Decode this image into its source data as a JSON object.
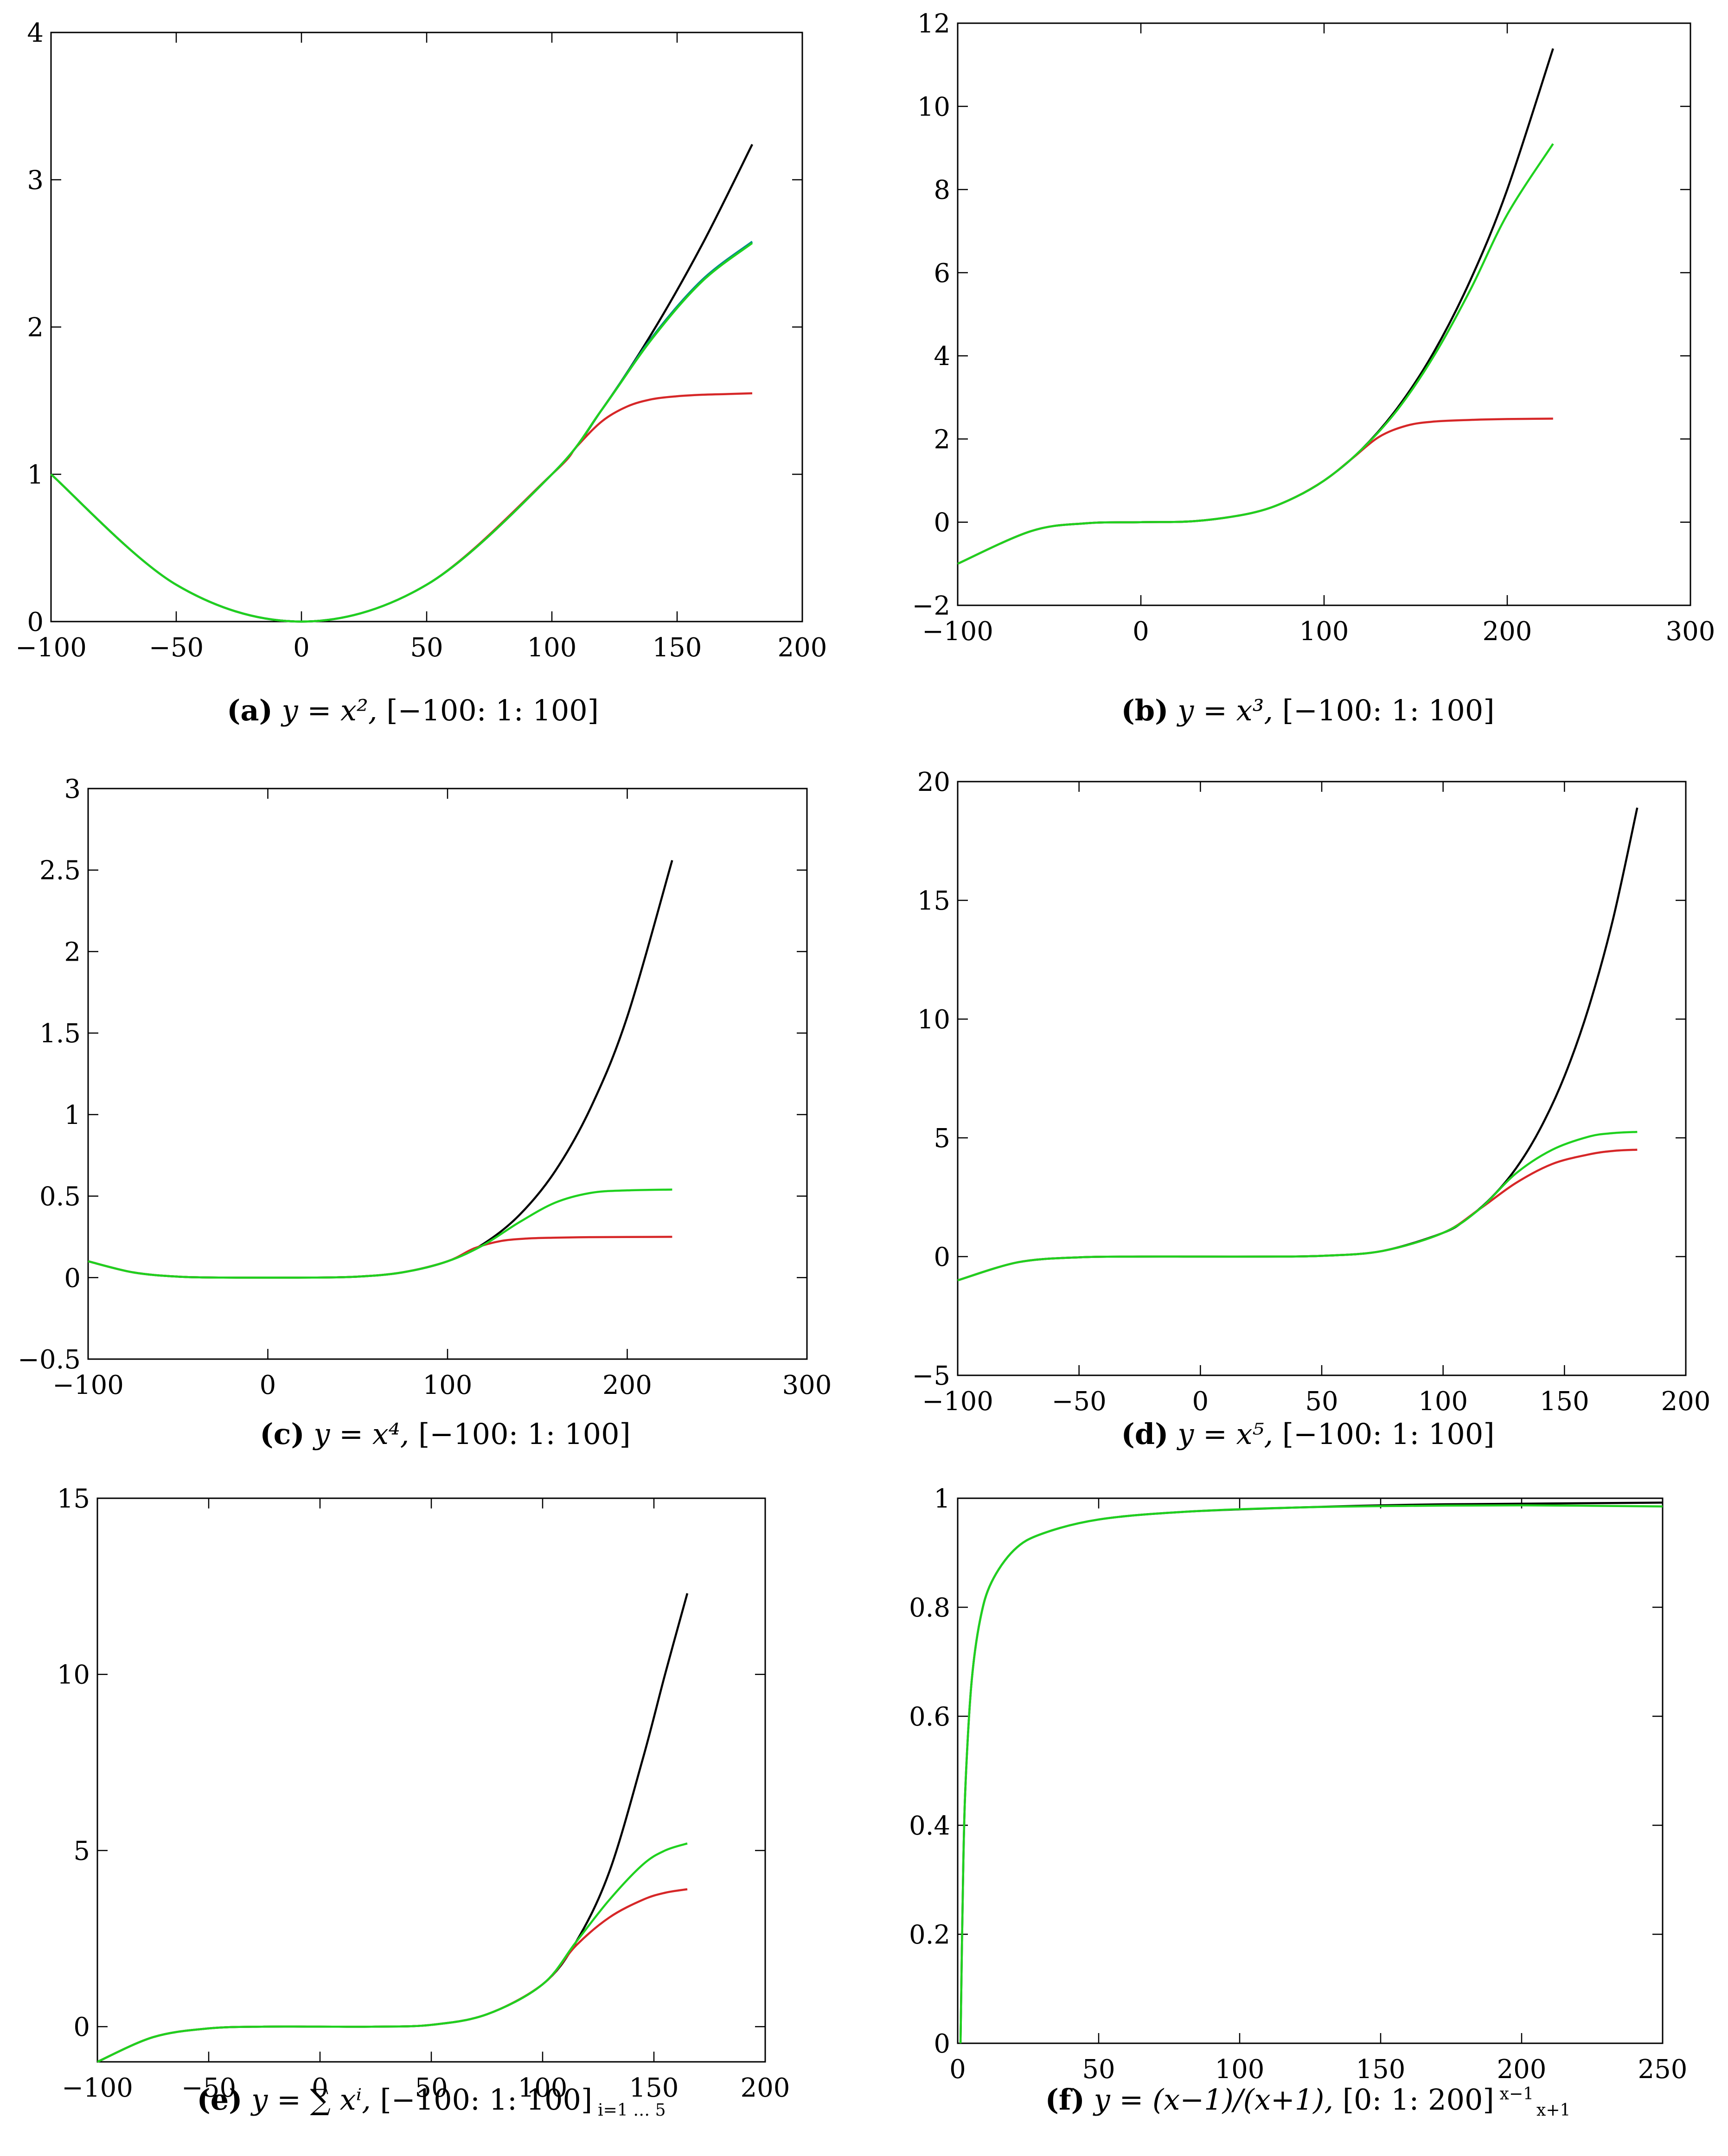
{
  "chart_data": [
    {
      "type": "line",
      "panel_label": "(a)",
      "caption_eq": "y = x²,",
      "caption_range": "[−100: 1: 100]",
      "xlim": [
        -100,
        200
      ],
      "ylim": [
        0,
        4
      ],
      "x_ticks": [
        -100,
        -50,
        0,
        50,
        100,
        150,
        200
      ],
      "y_ticks": [
        0,
        1,
        2,
        3,
        4
      ],
      "x_tick_labels": [
        "−100",
        "−50",
        "0",
        "50",
        "100",
        "150",
        "200"
      ],
      "y_tick_labels": [
        "0",
        "1",
        "2",
        "3",
        "4"
      ],
      "series": [
        {
          "name": "black",
          "color": "#000000",
          "x": [
            -100,
            -50,
            0,
            50,
            100,
            120,
            140,
            160,
            180
          ],
          "y": [
            1.0,
            0.25,
            0.0,
            0.25,
            1.0,
            1.44,
            1.96,
            2.56,
            3.24
          ]
        },
        {
          "name": "red",
          "color": "#d62728",
          "x": [
            -100,
            -50,
            0,
            50,
            100,
            110,
            120,
            130,
            140,
            150,
            160,
            170,
            180
          ],
          "y": [
            1.0,
            0.25,
            0.0,
            0.25,
            1.0,
            1.19,
            1.36,
            1.46,
            1.51,
            1.53,
            1.54,
            1.545,
            1.55
          ]
        },
        {
          "name": "teal",
          "color": "#008b8b",
          "x": [
            -100,
            -50,
            0,
            50,
            100,
            120,
            140,
            160,
            180
          ],
          "y": [
            1.0,
            0.25,
            0.0,
            0.25,
            1.0,
            1.44,
            1.93,
            2.32,
            2.58
          ]
        },
        {
          "name": "green",
          "color": "#1fd11f",
          "x": [
            -100,
            -50,
            0,
            50,
            100,
            120,
            140,
            160,
            180
          ],
          "y": [
            1.0,
            0.25,
            0.0,
            0.25,
            1.0,
            1.44,
            1.92,
            2.31,
            2.57
          ]
        }
      ]
    },
    {
      "type": "line",
      "panel_label": "(b)",
      "caption_eq": "y = x³,",
      "caption_range": "[−100: 1: 100]",
      "xlim": [
        -100,
        300
      ],
      "ylim": [
        -2,
        12
      ],
      "x_ticks": [
        -100,
        0,
        100,
        200,
        300
      ],
      "y_ticks": [
        -2,
        0,
        2,
        4,
        6,
        8,
        10,
        12
      ],
      "x_tick_labels": [
        "−100",
        "0",
        "100",
        "200",
        "300"
      ],
      "y_tick_labels": [
        "−2",
        "0",
        "2",
        "4",
        "6",
        "8",
        "10",
        "12"
      ],
      "series": [
        {
          "name": "black",
          "color": "#000000",
          "x": [
            -100,
            -60,
            -30,
            0,
            30,
            60,
            80,
            100,
            120,
            140,
            160,
            180,
            200,
            225
          ],
          "y": [
            -1.0,
            -0.216,
            -0.027,
            0.0,
            0.027,
            0.216,
            0.512,
            1.0,
            1.728,
            2.744,
            4.096,
            5.832,
            8.0,
            11.39
          ]
        },
        {
          "name": "red",
          "color": "#d62728",
          "x": [
            -100,
            -60,
            -30,
            0,
            30,
            60,
            80,
            100,
            115,
            130,
            145,
            160,
            180,
            200,
            225
          ],
          "y": [
            -1.0,
            -0.216,
            -0.027,
            0.0,
            0.027,
            0.216,
            0.512,
            1.0,
            1.52,
            2.05,
            2.32,
            2.42,
            2.46,
            2.48,
            2.49
          ]
        },
        {
          "name": "green",
          "color": "#1fd11f",
          "x": [
            -100,
            -60,
            -30,
            0,
            30,
            60,
            80,
            100,
            120,
            140,
            160,
            180,
            200,
            225
          ],
          "y": [
            -1.0,
            -0.216,
            -0.027,
            0.0,
            0.027,
            0.216,
            0.512,
            1.0,
            1.728,
            2.7,
            4.0,
            5.6,
            7.4,
            9.1
          ]
        }
      ]
    },
    {
      "type": "line",
      "panel_label": "(c)",
      "caption_eq": "y = x⁴,",
      "caption_range": "[−100: 1: 100]",
      "xlim": [
        -100,
        300
      ],
      "ylim": [
        -0.5,
        3
      ],
      "x_ticks": [
        -100,
        0,
        100,
        200,
        300
      ],
      "y_ticks": [
        -0.5,
        0,
        0.5,
        1,
        1.5,
        2,
        2.5,
        3
      ],
      "x_tick_labels": [
        "−100",
        "0",
        "100",
        "200",
        "300"
      ],
      "y_tick_labels": [
        "−0.5",
        "0",
        "0.5",
        "1",
        "1.5",
        "2",
        "2.5",
        "3"
      ],
      "series": [
        {
          "name": "black",
          "color": "#000000",
          "x": [
            -100,
            -75,
            -50,
            -25,
            0,
            25,
            50,
            75,
            100,
            120,
            140,
            160,
            180,
            200,
            225
          ],
          "y": [
            0.1,
            0.032,
            0.006,
            0.0,
            0.0,
            0.0,
            0.006,
            0.032,
            0.1,
            0.207,
            0.384,
            0.655,
            1.05,
            1.6,
            2.56
          ]
        },
        {
          "name": "red",
          "color": "#d62728",
          "x": [
            -100,
            -75,
            -50,
            -25,
            0,
            25,
            50,
            75,
            100,
            115,
            130,
            145,
            160,
            180,
            200,
            225
          ],
          "y": [
            0.1,
            0.032,
            0.006,
            0.0,
            0.0,
            0.0,
            0.006,
            0.032,
            0.1,
            0.18,
            0.225,
            0.24,
            0.245,
            0.248,
            0.249,
            0.25
          ]
        },
        {
          "name": "green",
          "color": "#1fd11f",
          "x": [
            -100,
            -75,
            -50,
            -25,
            0,
            25,
            50,
            75,
            100,
            120,
            140,
            160,
            180,
            200,
            225
          ],
          "y": [
            0.1,
            0.032,
            0.006,
            0.0,
            0.0,
            0.0,
            0.006,
            0.032,
            0.1,
            0.2,
            0.34,
            0.46,
            0.52,
            0.535,
            0.54
          ]
        }
      ]
    },
    {
      "type": "line",
      "panel_label": "(d)",
      "caption_eq": "y = x⁵,",
      "caption_range": "[−100: 1: 100]",
      "xlim": [
        -100,
        200
      ],
      "ylim": [
        -5,
        20
      ],
      "x_ticks": [
        -100,
        -50,
        0,
        50,
        100,
        150,
        200
      ],
      "y_ticks": [
        -5,
        0,
        5,
        10,
        15,
        20
      ],
      "x_tick_labels": [
        "−100",
        "−50",
        "0",
        "50",
        "100",
        "150",
        "200"
      ],
      "y_tick_labels": [
        "−5",
        "0",
        "5",
        "10",
        "15",
        "20"
      ],
      "series": [
        {
          "name": "black",
          "color": "#000000",
          "x": [
            -100,
            -75,
            -50,
            -25,
            0,
            25,
            50,
            75,
            100,
            110,
            120,
            130,
            140,
            150,
            160,
            170,
            180
          ],
          "y": [
            -1.0,
            -0.237,
            -0.031,
            0.0,
            0.0,
            0.0,
            0.031,
            0.237,
            1.0,
            1.61,
            2.49,
            3.71,
            5.38,
            7.59,
            10.49,
            14.2,
            18.9
          ]
        },
        {
          "name": "red",
          "color": "#d62728",
          "x": [
            -100,
            -75,
            -50,
            -25,
            0,
            25,
            50,
            75,
            100,
            115,
            130,
            145,
            160,
            170,
            180
          ],
          "y": [
            -1.0,
            -0.237,
            -0.031,
            0.0,
            0.0,
            0.0,
            0.031,
            0.237,
            1.0,
            2.0,
            3.1,
            3.9,
            4.3,
            4.45,
            4.5
          ]
        },
        {
          "name": "green",
          "color": "#1fd11f",
          "x": [
            -100,
            -75,
            -50,
            -25,
            0,
            25,
            50,
            75,
            100,
            115,
            130,
            145,
            160,
            170,
            180
          ],
          "y": [
            -1.0,
            -0.237,
            -0.031,
            0.0,
            0.0,
            0.0,
            0.031,
            0.237,
            1.0,
            2.0,
            3.5,
            4.5,
            5.05,
            5.2,
            5.25
          ]
        }
      ]
    },
    {
      "type": "line",
      "panel_label": "(e)",
      "caption_eq": "y = ∑ xⁱ,",
      "caption_sum_limits": "i=1 … 5",
      "caption_range": "[−100: 1: 100]",
      "xlim": [
        -100,
        200
      ],
      "ylim": [
        -1,
        15
      ],
      "x_ticks": [
        -100,
        -50,
        0,
        50,
        100,
        150,
        200
      ],
      "y_ticks": [
        0,
        5,
        10,
        15
      ],
      "x_tick_labels": [
        "−100",
        "−50",
        "0",
        "50",
        "100",
        "150",
        "200"
      ],
      "y_tick_labels": [
        "0",
        "5",
        "10",
        "15"
      ],
      "series": [
        {
          "name": "black",
          "color": "#000000",
          "x": [
            -100,
            -75,
            -50,
            -25,
            0,
            25,
            50,
            75,
            100,
            115,
            130,
            145,
            155,
            165
          ],
          "y": [
            -1.0,
            -0.3,
            -0.05,
            0.0,
            0.0,
            0.0,
            0.05,
            0.35,
            1.2,
            2.4,
            4.4,
            7.6,
            10.0,
            12.3
          ]
        },
        {
          "name": "red",
          "color": "#d62728",
          "x": [
            -100,
            -75,
            -50,
            -25,
            0,
            25,
            50,
            75,
            100,
            115,
            130,
            145,
            155,
            165
          ],
          "y": [
            -1.0,
            -0.3,
            -0.05,
            0.0,
            0.0,
            0.0,
            0.05,
            0.35,
            1.2,
            2.3,
            3.1,
            3.6,
            3.8,
            3.9
          ]
        },
        {
          "name": "green",
          "color": "#1fd11f",
          "x": [
            -100,
            -75,
            -50,
            -25,
            0,
            25,
            50,
            75,
            100,
            115,
            130,
            145,
            155,
            165
          ],
          "y": [
            -1.0,
            -0.3,
            -0.05,
            0.0,
            0.0,
            0.0,
            0.05,
            0.35,
            1.2,
            2.4,
            3.6,
            4.6,
            5.0,
            5.2
          ]
        }
      ]
    },
    {
      "type": "line",
      "panel_label": "(f)",
      "caption_eq": "y = (x−1)/(x+1),",
      "caption_frac_num": "x−1",
      "caption_frac_den": "x+1",
      "caption_range": "[0: 1: 200]",
      "xlim": [
        0,
        250
      ],
      "ylim": [
        0,
        1
      ],
      "x_ticks": [
        0,
        50,
        100,
        150,
        200,
        250
      ],
      "y_ticks": [
        0,
        0.2,
        0.4,
        0.6,
        0.8,
        1
      ],
      "x_tick_labels": [
        "0",
        "50",
        "100",
        "150",
        "200",
        "250"
      ],
      "y_tick_labels": [
        "0",
        "0.2",
        "0.4",
        "0.6",
        "0.8",
        "1"
      ],
      "series": [
        {
          "name": "black",
          "color": "#000000",
          "x": [
            1,
            2,
            3,
            5,
            8,
            12,
            20,
            30,
            50,
            80,
            120,
            160,
            200,
            250
          ],
          "y": [
            0.0,
            0.333,
            0.5,
            0.667,
            0.778,
            0.846,
            0.905,
            0.935,
            0.961,
            0.975,
            0.983,
            0.988,
            0.99,
            0.992
          ]
        },
        {
          "name": "green",
          "color": "#1fd11f",
          "x": [
            1,
            2,
            3,
            5,
            8,
            12,
            20,
            30,
            50,
            80,
            120,
            160,
            200,
            250
          ],
          "y": [
            0.0,
            0.333,
            0.5,
            0.667,
            0.778,
            0.846,
            0.905,
            0.935,
            0.961,
            0.975,
            0.983,
            0.986,
            0.987,
            0.985
          ]
        }
      ]
    }
  ]
}
